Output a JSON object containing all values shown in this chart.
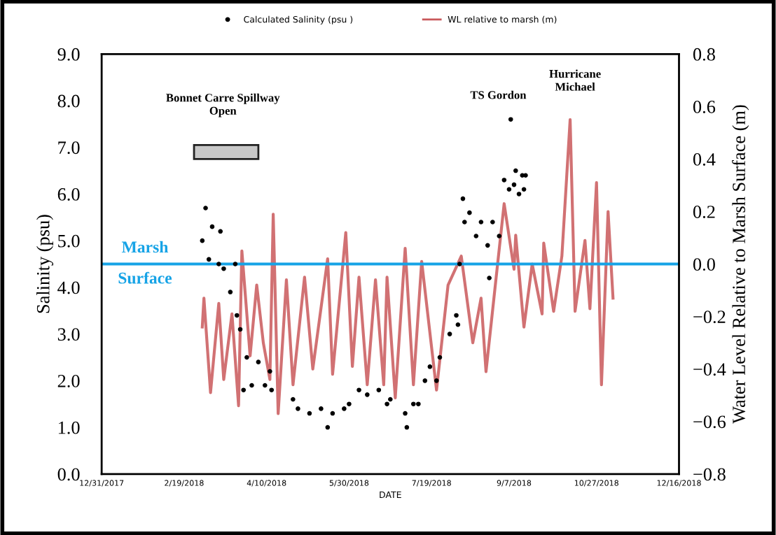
{
  "chart_data": {
    "type": "scatter",
    "xlabel": "DATE",
    "ylabel": "Salinity (psu)",
    "y2label": "Water Level Relative to Marsh Surface (m)",
    "xlim": [
      "2017-12-31",
      "2018-12-16"
    ],
    "xticks": [
      {
        "value": "2017-12-31",
        "label": "12/31/2017"
      },
      {
        "value": "2018-02-19",
        "label": "2/19/2018"
      },
      {
        "value": "2018-04-10",
        "label": "4/10/2018"
      },
      {
        "value": "2018-05-30",
        "label": "5/30/2018"
      },
      {
        "value": "2018-07-19",
        "label": "7/19/2018"
      },
      {
        "value": "2018-09-07",
        "label": "9/7/2018"
      },
      {
        "value": "2018-10-27",
        "label": "10/27/2018"
      },
      {
        "value": "2018-12-16",
        "label": "12/16/2018"
      }
    ],
    "ylim": [
      0,
      9
    ],
    "yticks": [
      {
        "value": 0,
        "label": "0.0"
      },
      {
        "value": 1,
        "label": "1.0"
      },
      {
        "value": 2,
        "label": "2.0"
      },
      {
        "value": 3,
        "label": "3.0"
      },
      {
        "value": 4,
        "label": "4.0"
      },
      {
        "value": 5,
        "label": "5.0"
      },
      {
        "value": 6,
        "label": "6.0"
      },
      {
        "value": 7,
        "label": "7.0"
      },
      {
        "value": 8,
        "label": "8.0"
      },
      {
        "value": 9,
        "label": "9.0"
      }
    ],
    "y2lim": [
      -0.8,
      0.8
    ],
    "y2ticks": [
      {
        "value": -0.8,
        "label": "−0.8"
      },
      {
        "value": -0.6,
        "label": "−0.6"
      },
      {
        "value": -0.4,
        "label": "−0.4"
      },
      {
        "value": -0.2,
        "label": "−0.2"
      },
      {
        "value": 0,
        "label": "0.0"
      },
      {
        "value": 0.2,
        "label": "0.2"
      },
      {
        "value": 0.4,
        "label": "0.4"
      },
      {
        "value": 0.6,
        "label": "0.6"
      },
      {
        "value": 0.8,
        "label": "0.8"
      }
    ],
    "legend": "top",
    "grid": false,
    "series": [
      {
        "name": "Calculated Salinity (psu )",
        "color": "#000000",
        "marker": "circle",
        "x": [
          "2018-03-02",
          "2018-03-04",
          "2018-03-06",
          "2018-03-08",
          "2018-03-12",
          "2018-03-13",
          "2018-03-15",
          "2018-03-19",
          "2018-03-22",
          "2018-03-23",
          "2018-03-25",
          "2018-03-27",
          "2018-03-29",
          "2018-04-01",
          "2018-04-05",
          "2018-04-09",
          "2018-04-12",
          "2018-04-13",
          "2018-04-26",
          "2018-04-29",
          "2018-05-06",
          "2018-05-13",
          "2018-05-17",
          "2018-05-20",
          "2018-05-27",
          "2018-05-30",
          "2018-06-05",
          "2018-06-10",
          "2018-06-17",
          "2018-06-22",
          "2018-06-24",
          "2018-07-03",
          "2018-07-04",
          "2018-07-08",
          "2018-07-11",
          "2018-07-15",
          "2018-07-18",
          "2018-07-22",
          "2018-07-24",
          "2018-07-30",
          "2018-08-03",
          "2018-08-04",
          "2018-08-05",
          "2018-08-07",
          "2018-08-08",
          "2018-08-11",
          "2018-08-15",
          "2018-08-18",
          "2018-08-22",
          "2018-08-23",
          "2018-08-25",
          "2018-08-29",
          "2018-09-01",
          "2018-09-04",
          "2018-09-05",
          "2018-09-07",
          "2018-09-08",
          "2018-09-10",
          "2018-09-12",
          "2018-09-13",
          "2018-09-14"
        ],
        "values": [
          5.0,
          5.7,
          4.6,
          5.3,
          4.5,
          5.2,
          4.4,
          3.9,
          4.5,
          3.4,
          3.1,
          1.8,
          2.5,
          1.9,
          2.4,
          1.9,
          2.2,
          1.8,
          1.6,
          1.4,
          1.3,
          1.4,
          1.0,
          1.3,
          1.4,
          1.5,
          1.8,
          1.7,
          1.8,
          1.5,
          1.6,
          1.3,
          1.0,
          1.5,
          1.5,
          2.0,
          2.3,
          2.0,
          2.5,
          3.0,
          3.4,
          3.2,
          4.5,
          5.9,
          5.4,
          5.6,
          5.1,
          5.4,
          4.9,
          4.2,
          5.4,
          5.1,
          6.3,
          6.1,
          7.6,
          6.2,
          6.5,
          6.0,
          6.4,
          6.1,
          6.4
        ]
      },
      {
        "name": "WL relative to marsh (m)",
        "type": "line",
        "axis": "y2",
        "color": "#c9585b",
        "marker": "none",
        "line_style": "solid",
        "x": [
          "2018-03-02",
          "2018-03-03",
          "2018-03-07",
          "2018-03-12",
          "2018-03-15",
          "2018-03-20",
          "2018-03-24",
          "2018-03-26",
          "2018-03-31",
          "2018-04-04",
          "2018-04-08",
          "2018-04-12",
          "2018-04-14",
          "2018-04-17",
          "2018-04-22",
          "2018-04-26",
          "2018-05-03",
          "2018-05-08",
          "2018-05-17",
          "2018-05-20",
          "2018-05-28",
          "2018-06-01",
          "2018-06-05",
          "2018-06-10",
          "2018-06-15",
          "2018-06-20",
          "2018-06-22",
          "2018-06-27",
          "2018-07-03",
          "2018-07-08",
          "2018-07-13",
          "2018-07-22",
          "2018-07-29",
          "2018-08-06",
          "2018-08-13",
          "2018-08-18",
          "2018-08-21",
          "2018-08-27",
          "2018-09-01",
          "2018-09-07",
          "2018-09-08",
          "2018-09-13",
          "2018-09-18",
          "2018-09-24",
          "2018-09-25",
          "2018-10-01",
          "2018-10-06",
          "2018-10-11",
          "2018-10-14",
          "2018-10-20",
          "2018-10-23",
          "2018-10-27",
          "2018-10-30",
          "2018-11-03",
          "2018-11-06"
        ],
        "values": [
          -0.24,
          -0.13,
          -0.49,
          -0.15,
          -0.44,
          -0.19,
          -0.54,
          0.05,
          -0.35,
          -0.08,
          -0.3,
          -0.44,
          0.19,
          -0.57,
          -0.06,
          -0.46,
          -0.05,
          -0.4,
          0.02,
          -0.42,
          0.12,
          -0.39,
          -0.05,
          -0.46,
          -0.06,
          -0.46,
          -0.05,
          -0.51,
          0.06,
          -0.46,
          0.01,
          -0.48,
          -0.08,
          0.03,
          -0.3,
          -0.13,
          -0.41,
          -0.06,
          0.23,
          -0.02,
          0.11,
          -0.24,
          0.0,
          -0.19,
          0.08,
          -0.18,
          0.03,
          0.55,
          -0.18,
          0.09,
          -0.17,
          0.31,
          -0.46,
          0.2,
          -0.13
        ]
      }
    ],
    "ref_lines": [
      {
        "axis": "y2",
        "value": 0,
        "label": "Marsh\nSurface",
        "color": "#16a3e6",
        "line_style": "solid"
      }
    ],
    "annotations": [
      "Bonnet Carre Spillway\nOpen",
      "TS Gordon",
      "Hurricane\nMichael"
    ]
  }
}
